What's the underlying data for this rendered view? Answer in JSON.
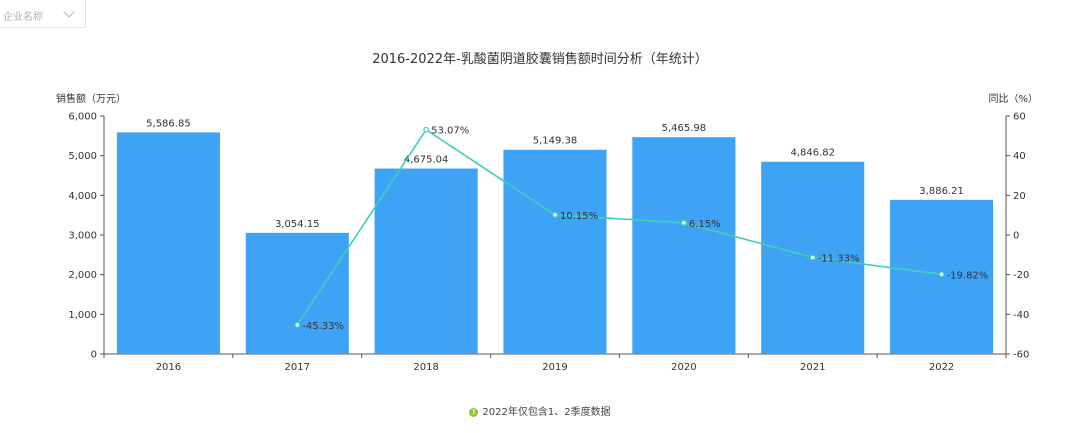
{
  "filter": {
    "placeholder": "企业名称"
  },
  "chart_data": {
    "type": "bar",
    "title": "2016-2022年-乳酸菌阴道胶囊销售额时间分析（年统计）",
    "ylabel": "销售额（万元）",
    "y2label": "同比（%）",
    "categories": [
      "2016",
      "2017",
      "2018",
      "2019",
      "2020",
      "2021",
      "2022"
    ],
    "ylim": [
      0,
      6000
    ],
    "yticks": [
      0,
      1000,
      2000,
      3000,
      4000,
      5000,
      6000
    ],
    "y2lim": [
      -60,
      60
    ],
    "y2ticks": [
      -60,
      -40,
      -20,
      0,
      20,
      40,
      60
    ],
    "series": [
      {
        "type": "bar",
        "axis": "left",
        "color": "#3ea3f5",
        "values": [
          5586.85,
          3054.15,
          4675.04,
          5149.38,
          5465.98,
          4846.82,
          3886.21
        ],
        "labels": [
          "5,586.85",
          "3,054.15",
          "4,675.04",
          "5,149.38",
          "5,465.98",
          "4,846.82",
          "3,886.21"
        ]
      },
      {
        "type": "line",
        "axis": "right",
        "color": "#3fd0b8",
        "values": [
          null,
          -45.33,
          53.07,
          10.15,
          6.15,
          -11.33,
          -19.82
        ],
        "labels": [
          "",
          "-45.33%",
          "53.07%",
          "10.15%",
          "6.15%",
          "-11.33%",
          "-19.82%"
        ]
      }
    ],
    "note": "2022年仅包含1、2季度数据",
    "note_icon": "exclamation-icon",
    "grid": false
  }
}
